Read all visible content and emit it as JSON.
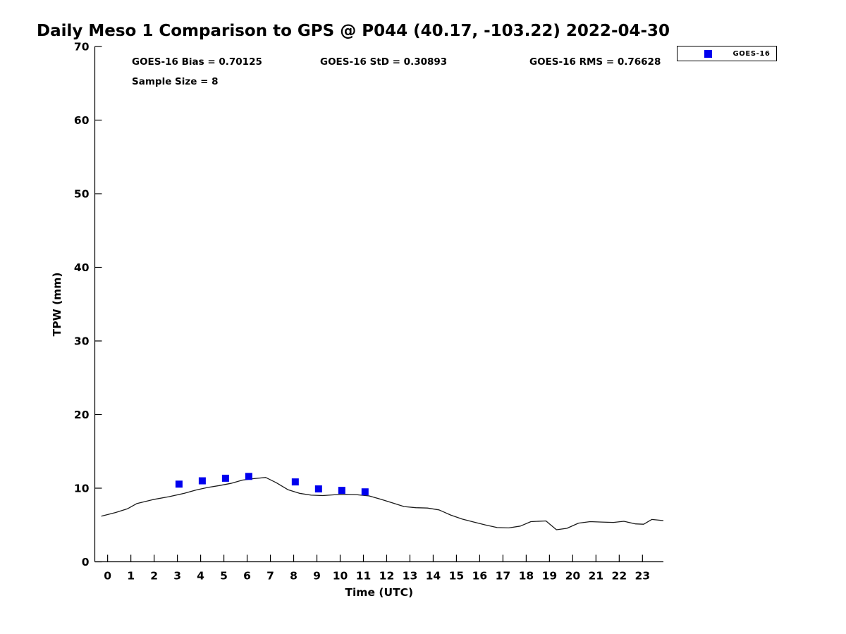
{
  "page": {
    "title": "Daily Meso 1 Comparison to GPS @ P044 (40.17, -103.22) 2022-04-30"
  },
  "stats": {
    "bias": "GOES-16 Bias = 0.70125",
    "std": "GOES-16 StD = 0.30893",
    "rms": "GOES-16 RMS = 0.76628",
    "sample_size": "Sample Size = 8"
  },
  "legend": {
    "position": "top-right",
    "entries": [
      {
        "label": "GOES-16",
        "marker": "square",
        "color": "#0000EE"
      }
    ]
  },
  "colors": {
    "background": "#ffffff",
    "axis": "#000000",
    "gps_line": "#1a1a1a",
    "goes_marker": "#0000EE"
  },
  "chart_data": {
    "type": "line",
    "title": "Daily Meso 1 Comparison to GPS @ P044 (40.17, -103.22) 2022-04-30",
    "xlabel": "Time (UTC)",
    "ylabel": "TPW (mm)",
    "xlim": [
      -0.55,
      23.9
    ],
    "ylim": [
      0,
      70
    ],
    "xticks": [
      0,
      1,
      2,
      3,
      4,
      5,
      6,
      7,
      8,
      9,
      10,
      11,
      12,
      13,
      14,
      15,
      16,
      17,
      18,
      19,
      20,
      21,
      22,
      23
    ],
    "yticks": [
      0,
      10,
      20,
      30,
      40,
      50,
      60,
      70
    ],
    "grid": false,
    "legend_position": "top-right",
    "series": [
      {
        "name": "GPS",
        "type": "line",
        "color": "#1a1a1a",
        "points": [
          [
            -0.27,
            6.2
          ],
          [
            0.35,
            6.7
          ],
          [
            0.85,
            7.2
          ],
          [
            1.25,
            7.9
          ],
          [
            1.95,
            8.45
          ],
          [
            2.65,
            8.85
          ],
          [
            3.3,
            9.3
          ],
          [
            3.8,
            9.75
          ],
          [
            4.3,
            10.1
          ],
          [
            4.8,
            10.35
          ],
          [
            5.3,
            10.65
          ],
          [
            5.8,
            11.1
          ],
          [
            6.3,
            11.3
          ],
          [
            6.8,
            11.45
          ],
          [
            7.25,
            10.75
          ],
          [
            7.75,
            9.8
          ],
          [
            8.25,
            9.3
          ],
          [
            8.75,
            9.05
          ],
          [
            9.25,
            9.0
          ],
          [
            9.75,
            9.1
          ],
          [
            10.25,
            9.15
          ],
          [
            10.75,
            9.1
          ],
          [
            11.25,
            8.95
          ],
          [
            11.75,
            8.5
          ],
          [
            12.25,
            8.0
          ],
          [
            12.75,
            7.5
          ],
          [
            13.25,
            7.35
          ],
          [
            13.75,
            7.3
          ],
          [
            14.25,
            7.05
          ],
          [
            14.75,
            6.35
          ],
          [
            15.25,
            5.8
          ],
          [
            15.75,
            5.4
          ],
          [
            16.25,
            5.0
          ],
          [
            16.75,
            4.65
          ],
          [
            17.25,
            4.6
          ],
          [
            17.75,
            4.85
          ],
          [
            18.2,
            5.45
          ],
          [
            18.85,
            5.55
          ],
          [
            19.3,
            4.35
          ],
          [
            19.75,
            4.55
          ],
          [
            20.25,
            5.25
          ],
          [
            20.75,
            5.45
          ],
          [
            21.25,
            5.4
          ],
          [
            21.75,
            5.35
          ],
          [
            22.2,
            5.5
          ],
          [
            22.7,
            5.15
          ],
          [
            23.05,
            5.1
          ],
          [
            23.4,
            5.75
          ],
          [
            23.9,
            5.6
          ]
        ]
      },
      {
        "name": "GOES-16",
        "type": "scatter",
        "marker": "square",
        "marker_size": 10,
        "color": "#0000EE",
        "points": [
          [
            3.07,
            10.55
          ],
          [
            4.07,
            11.0
          ],
          [
            5.07,
            11.35
          ],
          [
            6.07,
            11.6
          ],
          [
            8.07,
            10.85
          ],
          [
            9.07,
            9.9
          ],
          [
            10.07,
            9.7
          ],
          [
            11.07,
            9.5
          ]
        ]
      }
    ]
  }
}
